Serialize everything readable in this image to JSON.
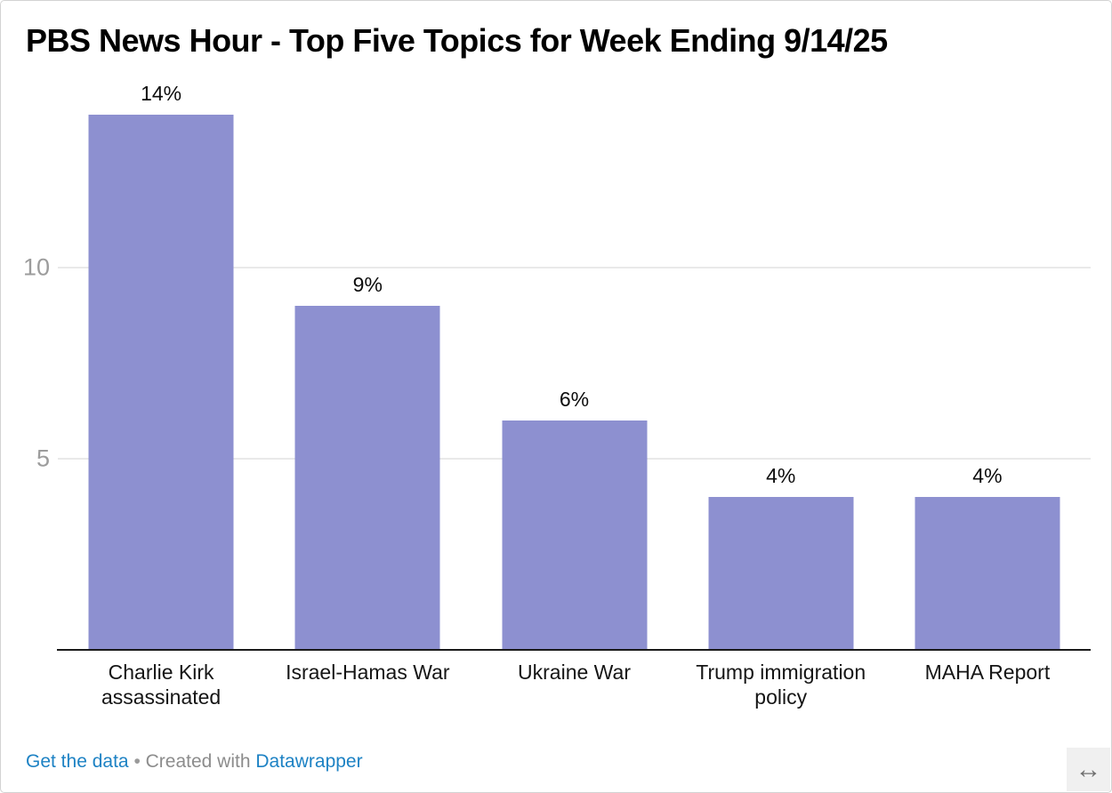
{
  "header": {
    "title": "PBS News Hour - Top Five Topics for Week Ending 9/14/25"
  },
  "chart_data": {
    "type": "bar",
    "title": "PBS News Hour - Top Five Topics for Week Ending 9/14/25",
    "categories": [
      "Charlie Kirk assassinated",
      "Israel-Hamas War",
      "Ukraine War",
      "Trump immigration policy",
      "MAHA Report"
    ],
    "values": [
      14,
      9,
      6,
      4,
      4
    ],
    "value_labels": [
      "14%",
      "9%",
      "6%",
      "4%",
      "4%"
    ],
    "xlabel": "",
    "ylabel": "",
    "ylim": [
      0,
      15
    ],
    "yticks": [
      5,
      10
    ],
    "grid": true,
    "legend": false,
    "bar_color": "#8d90d0"
  },
  "footer": {
    "get_data_label": "Get the data",
    "separator": "•",
    "created_with": "Created with",
    "brand": "Datawrapper",
    "link_color": "#1d82c4"
  },
  "icons": {
    "resize_arrow": "↔"
  }
}
